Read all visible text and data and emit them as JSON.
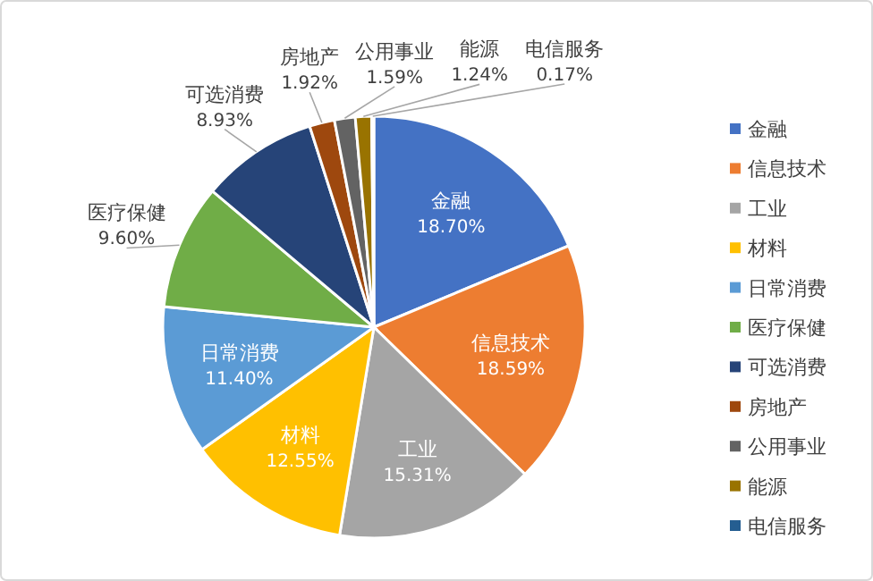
{
  "chart_data": {
    "type": "pie",
    "legend": "right",
    "data_labels": true,
    "categories": [
      "金融",
      "信息技术",
      "工业",
      "材料",
      "日常消费",
      "医疗保健",
      "可选消费",
      "房地产",
      "公用事业",
      "能源",
      "电信服务"
    ],
    "values": [
      18.7,
      18.59,
      15.31,
      12.55,
      11.4,
      9.6,
      8.93,
      1.92,
      1.59,
      1.24,
      0.17
    ],
    "value_labels": [
      "18.70%",
      "18.59%",
      "15.31%",
      "12.55%",
      "11.40%",
      "9.60%",
      "8.93%",
      "1.92%",
      "1.59%",
      "1.24%",
      "0.17%"
    ],
    "colors": [
      "#4472c4",
      "#ed7d31",
      "#a5a5a5",
      "#ffc000",
      "#5b9bd5",
      "#70ad47",
      "#264478",
      "#9e480e",
      "#636363",
      "#997300",
      "#255e91"
    ]
  }
}
